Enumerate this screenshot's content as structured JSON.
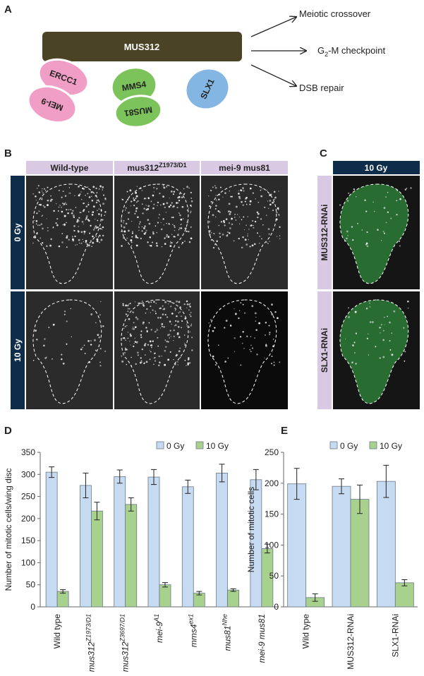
{
  "panel_a": {
    "label": "A",
    "complex": "MUS312",
    "partners": [
      "ERCC1",
      "MEI-9",
      "MMS4",
      "MUS81",
      "SLX1"
    ],
    "outcomes": [
      {
        "text": "Meiotic crossover"
      },
      {
        "text": "G",
        "sub": "2",
        "tail": "-M checkpoint"
      },
      {
        "text": "DSB repair"
      }
    ]
  },
  "panel_b": {
    "label": "B",
    "columns": [
      {
        "text": "Wild-type"
      },
      {
        "text": "mus312",
        "sup": "Z1973/D1"
      },
      {
        "text": "mei-9 mus81"
      }
    ],
    "rows": [
      "0 Gy",
      "10 Gy"
    ]
  },
  "panel_c": {
    "label": "C",
    "column": "10 Gy",
    "rows": [
      "MUS312-RNAi",
      "SLX1-RNAi"
    ]
  },
  "chart_data": [
    {
      "type": "bar",
      "label": "D",
      "y_label": "Number of mitotic cells/wing disc",
      "categories": [
        {
          "text": "Wild type"
        },
        {
          "text": "mus312",
          "sup": "Z1973/D1",
          "italic": true
        },
        {
          "text": "mus312",
          "sup": "Z3697/D1",
          "italic": true
        },
        {
          "text": "mei-9",
          "sup": "A1",
          "italic": true
        },
        {
          "text": "mms4",
          "sup": "ex1",
          "italic": true
        },
        {
          "text": "mus81",
          "sup": "Nhe",
          "italic": true
        },
        {
          "text": "mei-9 mus81",
          "italic": true
        }
      ],
      "series": [
        {
          "name": "0 Gy",
          "color": "#c6daf1",
          "values": [
            305,
            275,
            295,
            294,
            272,
            303,
            288
          ],
          "errors": [
            12,
            28,
            15,
            17,
            15,
            20,
            23
          ]
        },
        {
          "name": "10 Gy",
          "color": "#a9d18e",
          "values": [
            35,
            217,
            232,
            50,
            31,
            38,
            132
          ],
          "errors": [
            4,
            20,
            15,
            5,
            4,
            3,
            10
          ]
        }
      ],
      "ylim": [
        0,
        350
      ],
      "yticks": [
        0,
        50,
        100,
        150,
        200,
        250,
        300,
        350
      ],
      "grid": false,
      "legend": "top"
    },
    {
      "type": "bar",
      "label": "E",
      "y_label": "Number of mitotic cells",
      "categories": [
        "Wild type",
        "MUS312-RNAi",
        "SLX1-RNAi"
      ],
      "series": [
        {
          "name": "0 Gy",
          "color": "#c6daf1",
          "values": [
            199,
            195,
            203
          ],
          "errors": [
            25,
            12,
            26
          ]
        },
        {
          "name": "10 Gy",
          "color": "#a9d18e",
          "values": [
            15,
            174,
            39
          ],
          "errors": [
            6,
            23,
            5
          ]
        }
      ],
      "ylim": [
        0,
        250
      ],
      "yticks": [
        0,
        50,
        100,
        150,
        200,
        250
      ],
      "grid": false,
      "legend": "top"
    }
  ]
}
